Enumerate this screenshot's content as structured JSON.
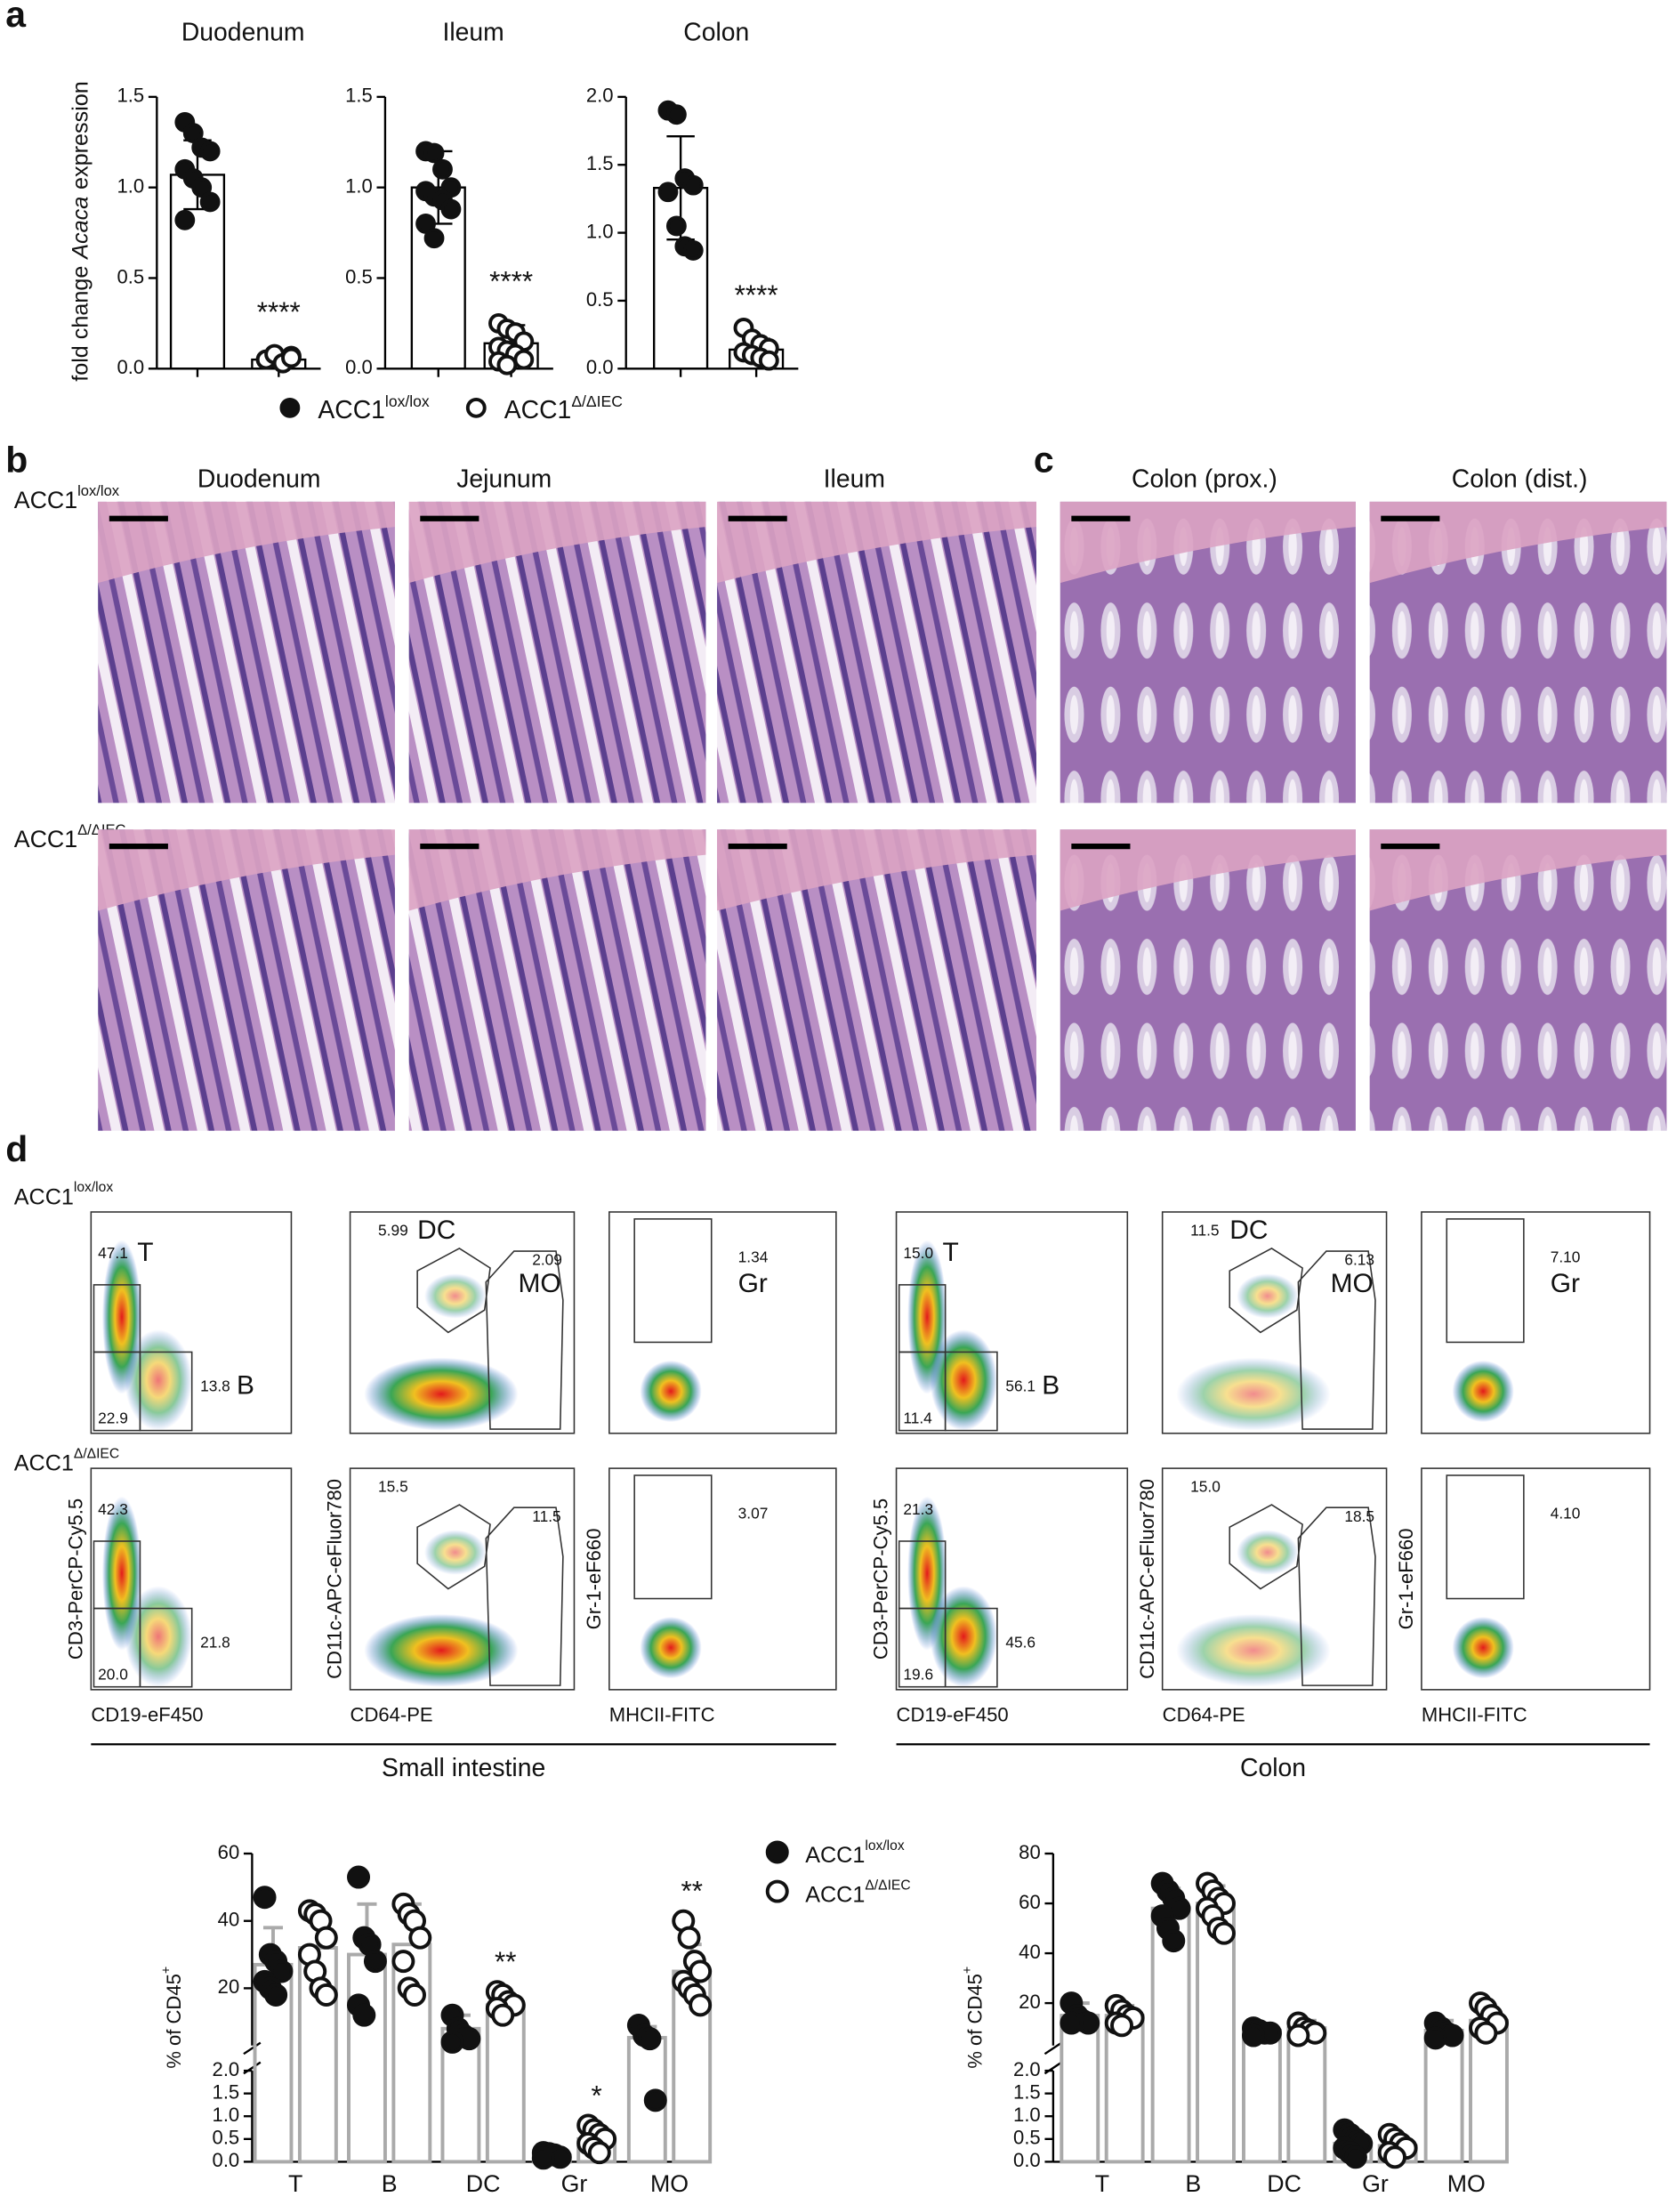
{
  "panel_a": {
    "label": "a",
    "y_label": [
      "fold change",
      "Acaca",
      "expression"
    ],
    "legend": [
      {
        "name": "ACC1",
        "sup": "lox/lox",
        "marker": "filled"
      },
      {
        "name": "ACC1",
        "sup": "Δ/ΔIEC",
        "marker": "open"
      }
    ],
    "charts": [
      {
        "type": "bar",
        "title": "Duodenum",
        "ylim": [
          0,
          1.5
        ],
        "yticks": [
          {
            "value": 0,
            "label": "0.0"
          },
          {
            "value": 0.5,
            "label": "0.5"
          },
          {
            "value": 1,
            "label": "1.0"
          },
          {
            "value": 1.5,
            "label": "1.5"
          }
        ],
        "series": [
          {
            "marker": "filled",
            "mean": 1.07,
            "sd": 0.19,
            "points": [
              1.36,
              1.3,
              1.22,
              1.2,
              1.1,
              1.05,
              1.0,
              0.92,
              0.82
            ]
          },
          {
            "marker": "open",
            "mean": 0.05,
            "sd": 0.02,
            "points": [
              0.05,
              0.06,
              0.04,
              0.07,
              0.05,
              0.08,
              0.03,
              0.06
            ],
            "annotation": "****"
          }
        ]
      },
      {
        "type": "bar",
        "title": "Ileum",
        "ylim": [
          0,
          1.5
        ],
        "yticks": [
          {
            "value": 0,
            "label": "0.0"
          },
          {
            "value": 0.5,
            "label": "0.5"
          },
          {
            "value": 1,
            "label": "1.0"
          },
          {
            "value": 1.5,
            "label": "1.5"
          }
        ],
        "series": [
          {
            "marker": "filled",
            "mean": 1.0,
            "sd": 0.2,
            "points": [
              1.2,
              1.19,
              1.1,
              1.0,
              0.98,
              0.95,
              0.93,
              0.88,
              0.8,
              0.72
            ]
          },
          {
            "marker": "open",
            "mean": 0.14,
            "sd": 0.1,
            "points": [
              0.25,
              0.22,
              0.2,
              0.15,
              0.12,
              0.1,
              0.08,
              0.05,
              0.04,
              0.02
            ],
            "annotation": "****"
          }
        ]
      },
      {
        "type": "bar",
        "title": "Colon",
        "ylim": [
          0,
          2
        ],
        "yticks": [
          {
            "value": 0,
            "label": "0.0"
          },
          {
            "value": 0.5,
            "label": "0.5"
          },
          {
            "value": 1,
            "label": "1.0"
          },
          {
            "value": 1.5,
            "label": "1.5"
          },
          {
            "value": 2,
            "label": "2.0"
          }
        ],
        "series": [
          {
            "marker": "filled",
            "mean": 1.33,
            "sd": 0.38,
            "points": [
              1.9,
              1.87,
              1.4,
              1.35,
              1.3,
              1.05,
              0.9,
              0.87
            ]
          },
          {
            "marker": "open",
            "mean": 0.14,
            "sd": 0.08,
            "points": [
              0.3,
              0.22,
              0.18,
              0.15,
              0.12,
              0.1,
              0.08,
              0.06
            ],
            "annotation": "****"
          }
        ]
      }
    ]
  },
  "panel_b": {
    "label": "b",
    "columns": [
      "Duodenum",
      "Jejunum",
      "Ileum"
    ],
    "rows": [
      {
        "name": "ACC1",
        "sup": "lox/lox"
      },
      {
        "name": "ACC1",
        "sup": "Δ/ΔIEC"
      }
    ]
  },
  "panel_c": {
    "label": "c",
    "columns": [
      "Colon (prox.)",
      "Colon (dist.)"
    ]
  },
  "panel_d": {
    "label": "d",
    "rows": [
      {
        "name": "ACC1",
        "sup": "lox/lox"
      },
      {
        "name": "ACC1",
        "sup": "Δ/ΔIEC"
      }
    ],
    "groups": [
      {
        "name": "Small intestine",
        "plots": [
          {
            "x_label": "CD19-eF450",
            "y_label": "CD3-PerCP-Cy5.5",
            "rows": [
              {
                "values": [
                  "47.1",
                  "13.8",
                  "22.9"
                ],
                "names": [
                  "T",
                  "B"
                ]
              },
              {
                "values": [
                  "42.3",
                  "21.8",
                  "20.0"
                ]
              }
            ]
          },
          {
            "x_label": "CD64-PE",
            "y_label": "CD11c-APC-eFluor780",
            "rows": [
              {
                "values": [
                  "5.99",
                  "2.09"
                ],
                "names": [
                  "DC",
                  "MO"
                ]
              },
              {
                "values": [
                  "15.5",
                  "11.5"
                ]
              }
            ]
          },
          {
            "x_label": "MHCII-FITC",
            "y_label": "Gr-1-eF660",
            "rows": [
              {
                "values": [
                  "1.34"
                ],
                "names": [
                  "Gr"
                ]
              },
              {
                "values": [
                  "3.07"
                ]
              }
            ]
          }
        ]
      },
      {
        "name": "Colon",
        "plots": [
          {
            "x_label": "CD19-eF450",
            "y_label": "CD3-PerCP-Cy5.5",
            "rows": [
              {
                "values": [
                  "15.0",
                  "56.1",
                  "11.4"
                ],
                "names": [
                  "T",
                  "B"
                ]
              },
              {
                "values": [
                  "21.3",
                  "45.6",
                  "19.6"
                ]
              }
            ]
          },
          {
            "x_label": "CD64-PE",
            "y_label": "CD11c-APC-eFluor780",
            "rows": [
              {
                "values": [
                  "11.5",
                  "6.13"
                ],
                "names": [
                  "DC",
                  "MO"
                ]
              },
              {
                "values": [
                  "15.0",
                  "18.5"
                ]
              }
            ]
          },
          {
            "x_label": "MHCII-FITC",
            "y_label": "Gr-1-eF660",
            "rows": [
              {
                "values": [
                  "7.10"
                ],
                "names": [
                  "Gr"
                ]
              },
              {
                "values": [
                  "4.10"
                ]
              }
            ]
          }
        ]
      }
    ],
    "legend": [
      {
        "name": "ACC1",
        "sup": "lox/lox",
        "marker": "filled"
      },
      {
        "name": "ACC1",
        "sup": "Δ/ΔIEC",
        "marker": "open"
      }
    ],
    "charts": [
      {
        "type": "bar",
        "y_label": "% of CD45",
        "y_label_sup": "+",
        "categories": [
          "T",
          "B",
          "DC",
          "Gr",
          "MO"
        ],
        "ylim": [
          3,
          60
        ],
        "yticks": [
          20,
          40,
          60
        ],
        "ylim_lower": [
          0,
          2
        ],
        "yticks_lower": [
          {
            "value": 0,
            "label": "0.0"
          },
          {
            "value": 0.5,
            "label": "0.5"
          },
          {
            "value": 1,
            "label": "1.0"
          },
          {
            "value": 1.5,
            "label": "1.5"
          },
          {
            "value": 2,
            "label": "2.0"
          }
        ],
        "annotations": [
          null,
          null,
          "**",
          "*",
          "**"
        ],
        "series": [
          {
            "marker": "filled",
            "means": [
              27,
              30,
              8,
              0.14,
              5.3
            ],
            "sd": [
              11,
              15,
              4,
              0.1,
              3.3
            ],
            "points": [
              [
                47,
                30,
                28,
                25,
                22,
                20,
                18
              ],
              [
                53,
                35,
                33,
                28,
                15,
                12
              ],
              [
                12,
                8,
                6,
                5,
                4
              ],
              [
                0.2,
                0.18,
                0.15,
                0.1,
                0.08
              ],
              [
                9,
                6,
                5,
                1.35
              ]
            ]
          },
          {
            "marker": "open",
            "means": [
              32,
              33,
              15,
              0.5,
              25
            ],
            "sd": [
              10,
              12,
              3,
              0.2,
              8
            ],
            "points": [
              [
                43,
                42,
                40,
                35,
                30,
                25,
                20,
                18
              ],
              [
                45,
                42,
                40,
                35,
                28,
                20,
                18
              ],
              [
                19,
                18,
                16,
                15,
                14,
                12
              ],
              [
                0.8,
                0.7,
                0.6,
                0.5,
                0.4,
                0.3,
                0.2
              ],
              [
                40,
                35,
                28,
                25,
                22,
                20,
                18,
                15
              ]
            ]
          }
        ]
      },
      {
        "type": "bar",
        "y_label": "% of CD45",
        "y_label_sup": "+",
        "categories": [
          "T",
          "B",
          "DC",
          "Gr",
          "MO"
        ],
        "ylim": [
          3,
          80
        ],
        "yticks": [
          20,
          40,
          60,
          80
        ],
        "ylim_lower": [
          0,
          2
        ],
        "yticks_lower": [
          {
            "value": 0,
            "label": "0.0"
          },
          {
            "value": 0.5,
            "label": "0.5"
          },
          {
            "value": 1,
            "label": "1.0"
          },
          {
            "value": 1.5,
            "label": "1.5"
          },
          {
            "value": 2,
            "label": "2.0"
          }
        ],
        "annotations": [
          null,
          null,
          null,
          null,
          null
        ],
        "series": [
          {
            "marker": "filled",
            "means": [
              15,
              58,
              9,
              0.4,
              9
            ],
            "sd": [
              5,
              8,
              2,
              0.25,
              4
            ],
            "points": [
              [
                20,
                15,
                13,
                12,
                12
              ],
              [
                68,
                65,
                62,
                58,
                55,
                50,
                45
              ],
              [
                10,
                9,
                8,
                8,
                7
              ],
              [
                0.7,
                0.6,
                0.5,
                0.4,
                0.3,
                0.2,
                0.1
              ],
              [
                12,
                10,
                8,
                7,
                6
              ]
            ]
          },
          {
            "marker": "open",
            "means": [
              15,
              60,
              10,
              0.35,
              13
            ],
            "sd": [
              4,
              7,
              3,
              0.2,
              5
            ],
            "points": [
              [
                19,
                17,
                15,
                14,
                12,
                11
              ],
              [
                68,
                65,
                62,
                60,
                58,
                55,
                50,
                48
              ],
              [
                12,
                10,
                9,
                8,
                7
              ],
              [
                0.6,
                0.5,
                0.4,
                0.3,
                0.2,
                0.1
              ],
              [
                20,
                18,
                15,
                12,
                10,
                8
              ]
            ]
          }
        ]
      }
    ]
  }
}
